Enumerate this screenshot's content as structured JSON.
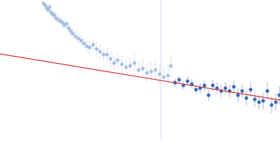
{
  "chart_data": {
    "type": "scatter",
    "xlim": [
      0,
      400
    ],
    "ylim": [
      0,
      200
    ],
    "vline": 230,
    "vline_color": "#c8d4ea",
    "series": [
      {
        "color": "#a9bfe3",
        "x": [
          62,
          65,
          67,
          69,
          71,
          73,
          75,
          78,
          80,
          83,
          86,
          89,
          92,
          95,
          98,
          101,
          104,
          108,
          112,
          116,
          120,
          124,
          128,
          133,
          138,
          143,
          148,
          153,
          158,
          163,
          168,
          174,
          180,
          186,
          192,
          198,
          204,
          210,
          216,
          222,
          228,
          234,
          240,
          244
        ],
        "values": [
          195,
          192,
          188,
          186,
          190,
          182,
          180,
          178,
          174,
          172,
          170,
          168,
          164,
          166,
          160,
          156,
          152,
          148,
          145,
          142,
          138,
          134,
          132,
          136,
          130,
          126,
          122,
          122,
          116,
          110,
          114,
          108,
          104,
          106,
          110,
          100,
          102,
          96,
          98,
          100,
          94,
          90,
          92,
          106
        ],
        "errors": [
          5,
          5,
          5,
          5,
          5,
          6,
          6,
          6,
          6,
          6,
          6,
          6,
          7,
          7,
          7,
          7,
          7,
          8,
          8,
          8,
          8,
          9,
          9,
          9,
          10,
          10,
          10,
          10,
          11,
          11,
          11,
          12,
          12,
          12,
          13,
          13,
          13,
          14,
          14,
          14,
          15,
          15,
          15,
          16
        ]
      },
      {
        "color": "#3b6cb7",
        "x": [
          250,
          256,
          262,
          268,
          274,
          280,
          286,
          292,
          298,
          304,
          310,
          316,
          322,
          328,
          334,
          340,
          346,
          352,
          358,
          364,
          370,
          376,
          382,
          388,
          394,
          399
        ],
        "values": [
          82,
          86,
          78,
          84,
          80,
          72,
          74,
          78,
          64,
          78,
          74,
          70,
          74,
          70,
          76,
          64,
          70,
          60,
          72,
          58,
          54,
          56,
          70,
          50,
          54,
          64
        ],
        "errors": [
          6,
          6,
          6,
          7,
          7,
          7,
          7,
          8,
          8,
          8,
          8,
          9,
          9,
          9,
          9,
          10,
          10,
          10,
          11,
          11,
          11,
          12,
          12,
          12,
          13,
          13
        ]
      }
    ],
    "fit": {
      "color": "#d42a2a",
      "x": [
        0,
        400
      ],
      "values": [
        123,
        57
      ]
    }
  }
}
